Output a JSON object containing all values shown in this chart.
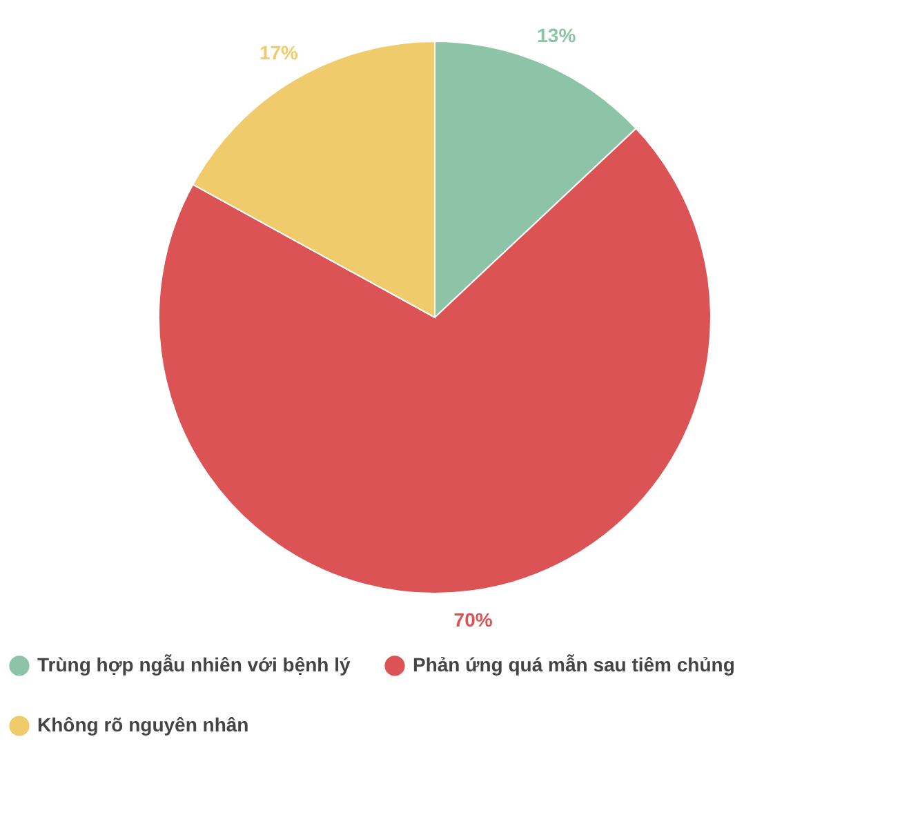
{
  "chart_data": {
    "type": "pie",
    "categories": [
      "Trùng hợp ngẫu nhiên với bệnh lý",
      "Phản ứng quá mẫn sau tiêm chủng",
      "Không rõ nguyên nhân"
    ],
    "values": [
      13,
      70,
      17
    ],
    "colors": [
      "#8dc4a8",
      "#db5355",
      "#efcb6b"
    ],
    "value_labels": [
      "13%",
      "70%",
      "17%"
    ],
    "legend": "bottom"
  }
}
